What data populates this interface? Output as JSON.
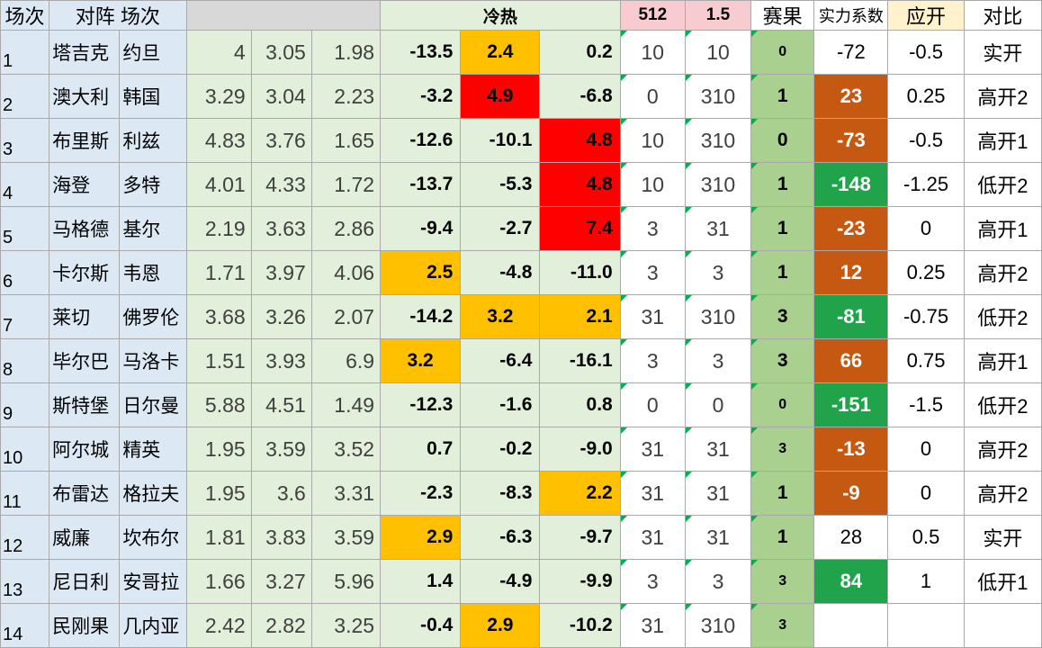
{
  "header": {
    "idx": "场次",
    "match": "对阵",
    "match2": "场次",
    "hot": "冷热",
    "col512": "512",
    "col15": "1.5",
    "result": "赛果",
    "strength": "实力系数",
    "yingkai": "应开",
    "duibi": "对比"
  },
  "colors": {
    "blue": "#dce9f5",
    "green_light": "#e2efda",
    "orange": "#ffc000",
    "red": "#ff0000",
    "brown": "#c65911",
    "green": "#21a34b",
    "result_green": "#a9d08e",
    "pink": "#f8cbd1"
  },
  "rows": [
    {
      "idx": "1",
      "home": "塔吉克",
      "away": "约旦",
      "o1": "4",
      "o2": "3.05",
      "o3": "1.98",
      "h1": "-13.5",
      "h2": "2.4",
      "h3": "0.2",
      "p1": "10",
      "p2": "10",
      "res": "0",
      "str": "-72",
      "yk": "-0.5",
      "db": "实开"
    },
    {
      "idx": "2",
      "home": "澳大利",
      "away": "韩国",
      "o1": "3.29",
      "o2": "3.04",
      "o3": "2.23",
      "h1": "-3.2",
      "h2": "4.9",
      "h3": "-6.8",
      "p1": "0",
      "p2": "310",
      "res": "1",
      "str": "23",
      "yk": "0.25",
      "db": "高开2"
    },
    {
      "idx": "3",
      "home": "布里斯",
      "away": "利兹",
      "o1": "4.83",
      "o2": "3.76",
      "o3": "1.65",
      "h1": "-12.6",
      "h2": "-10.1",
      "h3": "4.8",
      "p1": "10",
      "p2": "310",
      "res": "0",
      "str": "-73",
      "yk": "-0.5",
      "db": "高开1"
    },
    {
      "idx": "4",
      "home": "海登",
      "away": "多特",
      "o1": "4.01",
      "o2": "4.33",
      "o3": "1.72",
      "h1": "-13.7",
      "h2": "-5.3",
      "h3": "4.8",
      "p1": "10",
      "p2": "310",
      "res": "1",
      "str": "-148",
      "yk": "-1.25",
      "db": "低开2"
    },
    {
      "idx": "5",
      "home": "马格德",
      "away": "基尔",
      "o1": "2.19",
      "o2": "3.63",
      "o3": "2.86",
      "h1": "-9.4",
      "h2": "-2.7",
      "h3": "7.4",
      "p1": "3",
      "p2": "31",
      "res": "1",
      "str": "-23",
      "yk": "0",
      "db": "高开1"
    },
    {
      "idx": "6",
      "home": "卡尔斯",
      "away": "韦恩",
      "o1": "1.71",
      "o2": "3.97",
      "o3": "4.06",
      "h1": "2.5",
      "h2": "-4.8",
      "h3": "-11.0",
      "p1": "3",
      "p2": "3",
      "res": "1",
      "str": "12",
      "yk": "0.25",
      "db": "高开2"
    },
    {
      "idx": "7",
      "home": "莱切",
      "away": "佛罗伦",
      "o1": "3.68",
      "o2": "3.26",
      "o3": "2.07",
      "h1": "-14.2",
      "h2": "3.2",
      "h3": "2.1",
      "p1": "31",
      "p2": "310",
      "res": "3",
      "str": "-81",
      "yk": "-0.75",
      "db": "低开2"
    },
    {
      "idx": "8",
      "home": "毕尔巴",
      "away": "马洛卡",
      "o1": "1.51",
      "o2": "3.93",
      "o3": "6.9",
      "h1": "3.2",
      "h2": "-6.4",
      "h3": "-16.1",
      "p1": "3",
      "p2": "3",
      "res": "3",
      "str": "66",
      "yk": "0.75",
      "db": "高开1"
    },
    {
      "idx": "9",
      "home": "斯特堡",
      "away": "日尔曼",
      "o1": "5.88",
      "o2": "4.51",
      "o3": "1.49",
      "h1": "-12.3",
      "h2": "-1.6",
      "h3": "0.8",
      "p1": "0",
      "p2": "0",
      "res": "0",
      "str": "-151",
      "yk": "-1.5",
      "db": "低开2"
    },
    {
      "idx": "10",
      "home": "阿尔城",
      "away": "精英",
      "o1": "1.95",
      "o2": "3.59",
      "o3": "3.52",
      "h1": "0.7",
      "h2": "-0.2",
      "h3": "-9.0",
      "p1": "31",
      "p2": "31",
      "res": "3",
      "str": "-13",
      "yk": "0",
      "db": "高开2"
    },
    {
      "idx": "11",
      "home": "布雷达",
      "away": "格拉夫",
      "o1": "1.95",
      "o2": "3.6",
      "o3": "3.31",
      "h1": "-2.3",
      "h2": "-8.3",
      "h3": "2.2",
      "p1": "31",
      "p2": "31",
      "res": "1",
      "str": "-9",
      "yk": "0",
      "db": "高开2"
    },
    {
      "idx": "12",
      "home": "威廉",
      "away": "坎布尔",
      "o1": "1.81",
      "o2": "3.83",
      "o3": "3.59",
      "h1": "2.9",
      "h2": "-6.3",
      "h3": "-9.7",
      "p1": "31",
      "p2": "31",
      "res": "1",
      "str": "28",
      "yk": "0.5",
      "db": "实开"
    },
    {
      "idx": "13",
      "home": "尼日利",
      "away": "安哥拉",
      "o1": "1.66",
      "o2": "3.27",
      "o3": "5.96",
      "h1": "1.4",
      "h2": "-4.9",
      "h3": "-9.9",
      "p1": "3",
      "p2": "3",
      "res": "3",
      "str": "84",
      "yk": "1",
      "db": "低开1"
    },
    {
      "idx": "14",
      "home": "民刚果",
      "away": "几内亚",
      "o1": "2.42",
      "o2": "2.82",
      "o3": "3.25",
      "h1": "-0.4",
      "h2": "2.9",
      "h3": "-10.2",
      "p1": "31",
      "p2": "310",
      "res": "3",
      "str": "",
      "yk": "",
      "db": ""
    }
  ]
}
